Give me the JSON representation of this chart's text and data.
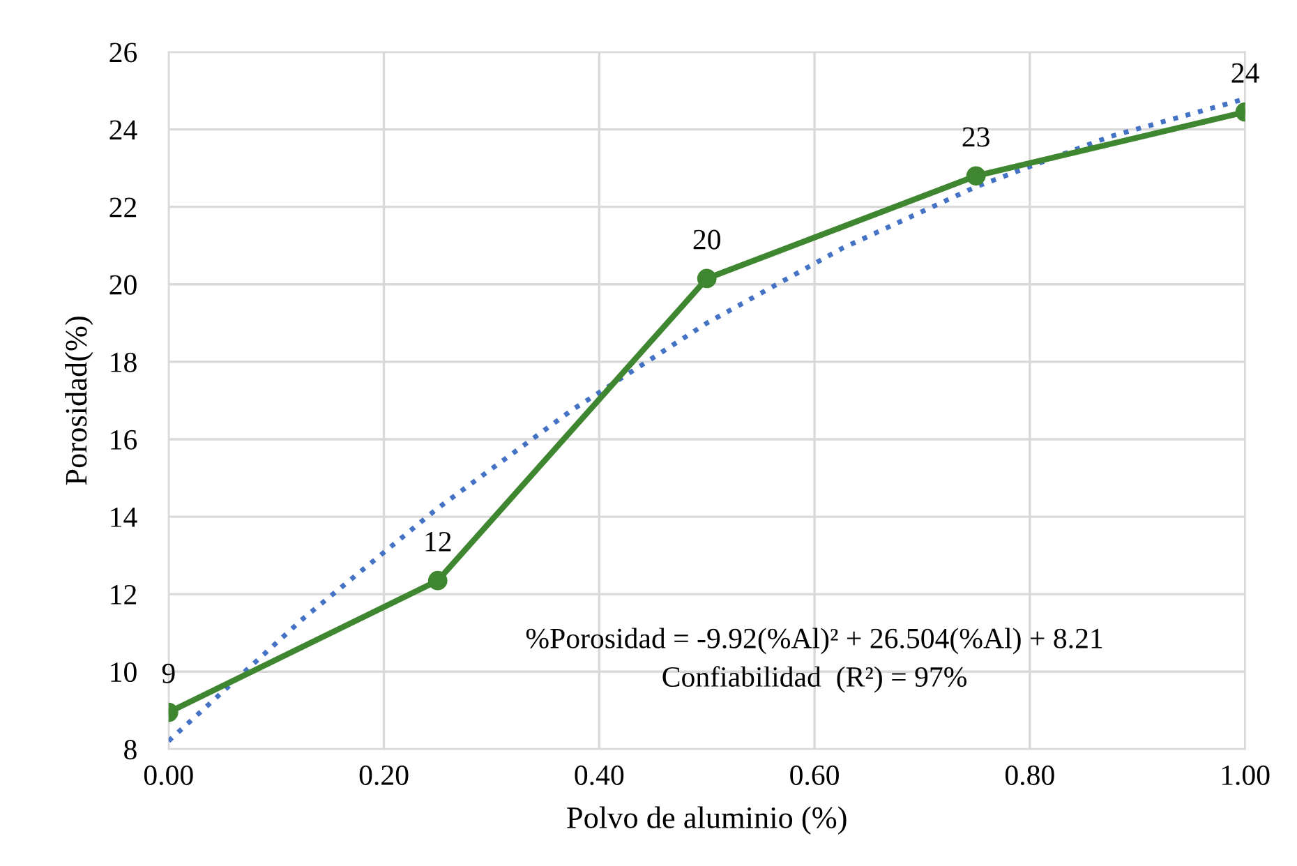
{
  "chart_data": {
    "type": "line",
    "xlabel": "Polvo de aluminio (%)",
    "ylabel": "Porosidad(%)",
    "xlim": [
      0,
      1
    ],
    "xticks": [
      {
        "value": 0,
        "label": "0.00"
      },
      {
        "value": 0.2,
        "label": "0.20"
      },
      {
        "value": 0.4,
        "label": "0.40"
      },
      {
        "value": 0.6,
        "label": "0.60"
      },
      {
        "value": 0.8,
        "label": "0.80"
      },
      {
        "value": 1,
        "label": "1.00"
      }
    ],
    "ylim": [
      8,
      26
    ],
    "yticks": [
      8,
      10,
      12,
      14,
      16,
      18,
      20,
      22,
      24,
      26
    ],
    "grid": true,
    "legend": false,
    "series": [
      {
        "x": [
          0,
          0.125,
          0.25,
          0.375,
          0.5,
          0.625,
          0.75,
          0.875,
          1
        ],
        "values": [
          8.21,
          11.37,
          14.22,
          16.76,
          19.0,
          20.92,
          22.52,
          23.82,
          24.79
        ],
        "color": "#4472c4",
        "marker": "none",
        "line_style": "dotted"
      },
      {
        "x": [
          0,
          0.25,
          0.5,
          0.75,
          1
        ],
        "values": [
          8.95,
          12.35,
          20.15,
          22.8,
          24.45
        ],
        "color": "#3f8630",
        "marker": "circle",
        "line_style": "solid",
        "value_labels": [
          "9",
          "12",
          "20",
          "23",
          "24"
        ]
      }
    ],
    "annotations": [
      "%Porosidad = -9.92(%Al)² + 26.504(%Al) + 8.21",
      "Confiabilidad  (R²) = 97%"
    ]
  }
}
